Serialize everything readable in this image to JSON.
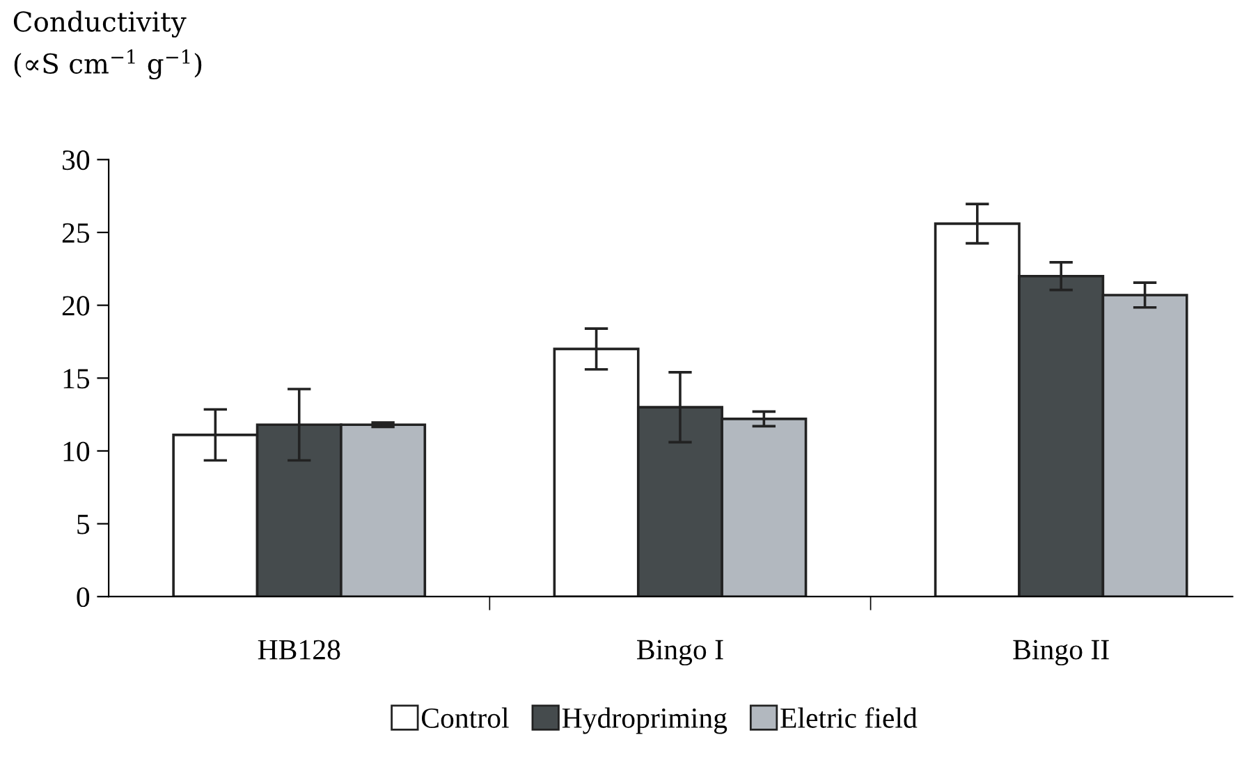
{
  "chart_data": {
    "type": "bar",
    "ylabel": "Conductivity\n(∝S cm$^{−1}$ g$^{−1}$)",
    "categories": [
      "HB128",
      "Bingo I",
      "Bingo II"
    ],
    "series": [
      {
        "name": "Control",
        "color": "#ffffff",
        "values": [
          11.1,
          17.0,
          25.6
        ],
        "errors": [
          1.75,
          1.4,
          1.35
        ]
      },
      {
        "name": "Hydropriming",
        "color": "#454b4d",
        "values": [
          11.8,
          13.0,
          22.0
        ],
        "errors": [
          2.45,
          2.4,
          0.95
        ]
      },
      {
        "name": "Eletric field",
        "color": "#b2b8bf",
        "values": [
          11.8,
          12.2,
          20.7
        ],
        "errors": [
          0.15,
          0.5,
          0.85
        ]
      }
    ],
    "ylim": [
      0,
      30
    ],
    "yticks": [
      0,
      5,
      10,
      15,
      20,
      25,
      30
    ],
    "grid": false,
    "legend": "bottom"
  }
}
